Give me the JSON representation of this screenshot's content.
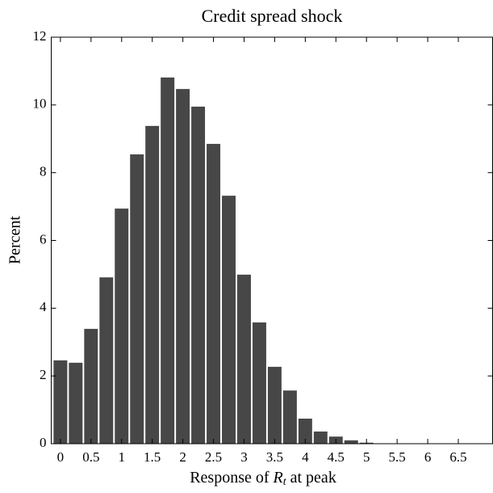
{
  "chart_data": {
    "type": "histogram",
    "title": "Credit spread shock",
    "x_label": [
      "Response of ",
      "R",
      "t",
      " at peak"
    ],
    "y_label": "Percent",
    "bins": [
      -0.125,
      0.125,
      0.375,
      0.625,
      0.875,
      1.125,
      1.375,
      1.625,
      1.875,
      2.125,
      2.375,
      2.625,
      2.875,
      3.125,
      3.375,
      3.625,
      3.875,
      4.125,
      4.375,
      4.625,
      4.875,
      5.125
    ],
    "values": [
      2.46,
      2.39,
      3.39,
      4.91,
      6.94,
      8.54,
      9.38,
      10.81,
      10.47,
      9.95,
      8.85,
      7.32,
      4.99,
      3.58,
      2.27,
      1.57,
      0.74,
      0.36,
      0.21,
      0.1,
      0.03
    ],
    "color": "#474747",
    "xlim": [
      -0.15,
      7.06
    ],
    "xticks": [
      0,
      0.5,
      1,
      1.5,
      2,
      2.5,
      3,
      3.5,
      4,
      4.5,
      5,
      5.5,
      6,
      6.5
    ],
    "ylim": [
      0,
      12
    ],
    "yticks": [
      0,
      2,
      4,
      6,
      8,
      10,
      12
    ]
  }
}
